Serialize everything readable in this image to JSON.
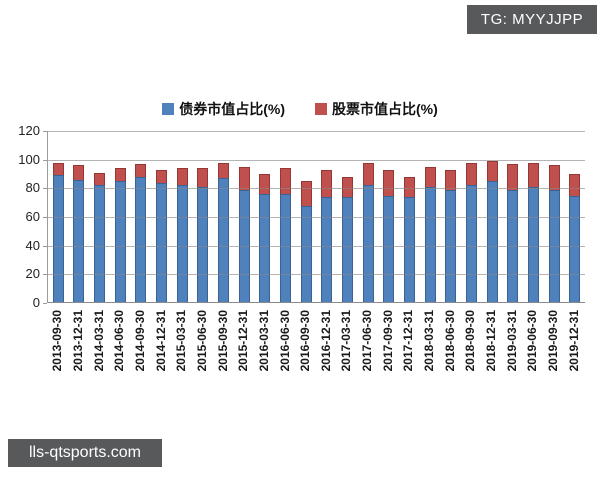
{
  "badges": {
    "tg": "TG: MYYJJPP",
    "site": "lls-qtsports.com"
  },
  "chart_data": {
    "type": "bar",
    "stacked": true,
    "grid": true,
    "legend_position": "top",
    "ylim": [
      0,
      120
    ],
    "ytick_step": 20,
    "categories": [
      "2013-09-30",
      "2013-12-31",
      "2014-03-31",
      "2014-06-30",
      "2014-09-30",
      "2014-12-31",
      "2015-03-31",
      "2015-06-30",
      "2015-09-30",
      "2015-12-31",
      "2016-03-31",
      "2016-06-30",
      "2016-09-30",
      "2016-12-31",
      "2017-03-31",
      "2017-06-30",
      "2017-09-30",
      "2017-12-31",
      "2018-03-31",
      "2018-06-30",
      "2018-09-30",
      "2018-12-31",
      "2019-03-31",
      "2019-06-30",
      "2019-09-30",
      "2019-12-31"
    ],
    "series": [
      {
        "name": "债券市值占比(%)",
        "color": "#4f81bd",
        "values": [
          89,
          86,
          82,
          85,
          88,
          84,
          82,
          81,
          87,
          79,
          76,
          76,
          68,
          74,
          74,
          82,
          75,
          74,
          81,
          79,
          82,
          85,
          79,
          81,
          79,
          75
        ]
      },
      {
        "name": "股票市值占比(%)",
        "color": "#c0504d",
        "values": [
          9,
          10,
          9,
          9,
          9,
          9,
          12,
          13,
          11,
          16,
          14,
          18,
          17,
          19,
          14,
          16,
          18,
          14,
          14,
          14,
          16,
          14,
          18,
          17,
          17,
          15
        ]
      }
    ]
  }
}
